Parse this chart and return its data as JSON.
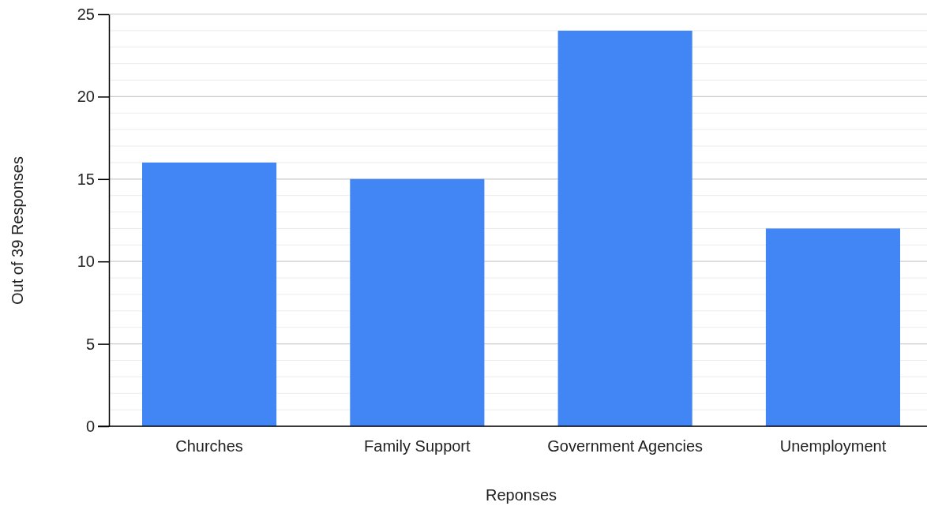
{
  "chart_data": {
    "type": "bar",
    "xlabel": "Reponses",
    "ylabel": "Out of 39 Responses",
    "categories": [
      "Churches",
      "Family Support",
      "Government Agencies",
      "Unemployment"
    ],
    "values": [
      16,
      15,
      24,
      12
    ],
    "color": "#4285f4",
    "ylim": [
      0,
      25
    ],
    "yticks": [
      0,
      5,
      10,
      15,
      20,
      25
    ],
    "grid": true
  }
}
